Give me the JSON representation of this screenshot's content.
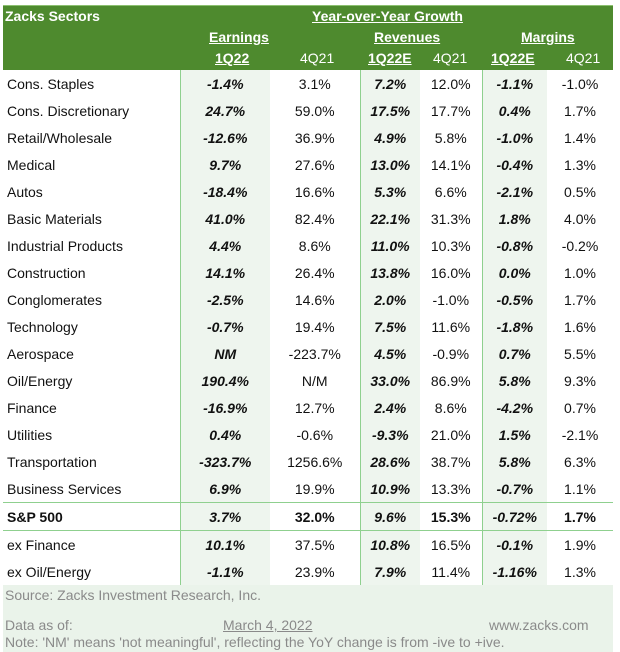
{
  "header": {
    "title": "Zacks Sectors",
    "group": "Year-over-Year Growth",
    "earnings": "Earnings",
    "revenues": "Revenues",
    "margins": "Margins",
    "cols": [
      "1Q22",
      "4Q21",
      "1Q22E",
      "4Q21",
      "1Q22E",
      "4Q21"
    ]
  },
  "rows": [
    [
      "Cons. Staples",
      "-1.4%",
      "3.1%",
      "7.2%",
      "12.0%",
      "-1.1%",
      "-1.0%"
    ],
    [
      "Cons. Discretionary",
      "24.7%",
      "59.0%",
      "17.5%",
      "17.7%",
      "0.4%",
      "1.7%"
    ],
    [
      "Retail/Wholesale",
      "-12.6%",
      "36.9%",
      "4.9%",
      "5.8%",
      "-1.0%",
      "1.4%"
    ],
    [
      "Medical",
      "9.7%",
      "27.6%",
      "13.0%",
      "14.1%",
      "-0.4%",
      "1.3%"
    ],
    [
      "Autos",
      "-18.4%",
      "16.6%",
      "5.3%",
      "6.6%",
      "-2.1%",
      "0.5%"
    ],
    [
      "Basic Materials",
      "41.0%",
      "82.4%",
      "22.1%",
      "31.3%",
      "1.8%",
      "4.0%"
    ],
    [
      "Industrial Products",
      "4.4%",
      "8.6%",
      "11.0%",
      "10.3%",
      "-0.8%",
      "-0.2%"
    ],
    [
      "Construction",
      "14.1%",
      "26.4%",
      "13.8%",
      "16.0%",
      "0.0%",
      "1.0%"
    ],
    [
      "Conglomerates",
      "-2.5%",
      "14.6%",
      "2.0%",
      "-1.0%",
      "-0.5%",
      "1.7%"
    ],
    [
      "Technology",
      "-0.7%",
      "19.4%",
      "7.5%",
      "11.6%",
      "-1.8%",
      "1.6%"
    ],
    [
      "Aerospace",
      "NM",
      "-223.7%",
      "4.5%",
      "-0.9%",
      "0.7%",
      "5.5%"
    ],
    [
      "Oil/Energy",
      "190.4%",
      "N/M",
      "33.0%",
      "86.9%",
      "5.8%",
      "9.3%"
    ],
    [
      "Finance",
      "-16.9%",
      "12.7%",
      "2.4%",
      "8.6%",
      "-4.2%",
      "0.7%"
    ],
    [
      "Utilities",
      "0.4%",
      "-0.6%",
      "-9.3%",
      "21.0%",
      "1.5%",
      "-2.1%"
    ],
    [
      "Transportation",
      "-323.7%",
      "1256.6%",
      "28.6%",
      "38.7%",
      "5.8%",
      "6.3%"
    ],
    [
      "Business Services",
      "6.9%",
      "19.9%",
      "10.9%",
      "13.3%",
      "-0.7%",
      "1.1%"
    ],
    [
      "S&P 500",
      "3.7%",
      "32.0%",
      "9.6%",
      "15.3%",
      "-0.72%",
      "1.7%"
    ],
    [
      "ex Finance",
      "10.1%",
      "37.5%",
      "10.8%",
      "16.5%",
      "-0.1%",
      "1.9%"
    ],
    [
      "ex Oil/Energy",
      "-1.1%",
      "23.9%",
      "7.9%",
      "11.4%",
      "-1.16%",
      "1.3%"
    ]
  ],
  "footer": {
    "source": "Source: Zacks Investment Research, Inc.",
    "data_as_of_label": "Data as of:",
    "date": "March 4, 2022",
    "website": "www.zacks.com",
    "note": "Note: 'NM' means 'not meaningful', reflecting the YoY change is from -ive to +ive."
  },
  "colors": {
    "header_green": "#4e8a2e",
    "shade": "#eef5ee",
    "rule": "#8fd08f"
  }
}
